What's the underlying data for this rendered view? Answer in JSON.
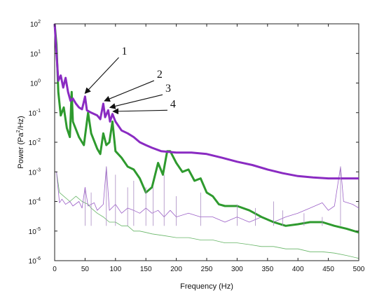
{
  "chart_data": {
    "type": "line",
    "title": "",
    "xlabel": "Frequency (Hz)",
    "ylabel": {
      "base": "Power (Pa",
      "sup": "2",
      "tail": "/Hz)"
    },
    "xlim": [
      0,
      500
    ],
    "ylim_exp": [
      -6,
      2
    ],
    "yscale": "log",
    "grid": false,
    "legend": "none",
    "x_ticks": [
      "0",
      "50",
      "100",
      "150",
      "200",
      "250",
      "300",
      "350",
      "400",
      "450",
      "500"
    ],
    "y_ticks": [
      {
        "base": "10",
        "exp": "-6"
      },
      {
        "base": "10",
        "exp": "-5"
      },
      {
        "base": "10",
        "exp": "-4"
      },
      {
        "base": "10",
        "exp": "-3"
      },
      {
        "base": "10",
        "exp": "-2"
      },
      {
        "base": "10",
        "exp": "-1"
      },
      {
        "base": "10",
        "exp": "0"
      },
      {
        "base": "10",
        "exp": "1"
      },
      {
        "base": "10",
        "exp": "2"
      }
    ],
    "series": [
      {
        "color": "#8a2bc2",
        "width": 3,
        "points": [
          [
            0,
            100
          ],
          [
            3,
            10
          ],
          [
            6,
            1.2
          ],
          [
            10,
            1.8
          ],
          [
            14,
            0.7
          ],
          [
            18,
            1.5
          ],
          [
            22,
            0.5
          ],
          [
            26,
            0.25
          ],
          [
            30,
            0.3
          ],
          [
            35,
            0.2
          ],
          [
            40,
            0.15
          ],
          [
            45,
            0.13
          ],
          [
            50,
            0.35
          ],
          [
            53,
            0.12
          ],
          [
            60,
            0.1
          ],
          [
            70,
            0.08
          ],
          [
            75,
            0.06
          ],
          [
            80,
            0.2
          ],
          [
            83,
            0.07
          ],
          [
            88,
            0.12
          ],
          [
            91,
            0.05
          ],
          [
            95,
            0.09
          ],
          [
            100,
            0.05
          ],
          [
            110,
            0.025
          ],
          [
            120,
            0.02
          ],
          [
            130,
            0.015
          ],
          [
            140,
            0.01
          ],
          [
            150,
            0.008
          ],
          [
            160,
            0.0065
          ],
          [
            175,
            0.005
          ],
          [
            200,
            0.0045
          ],
          [
            225,
            0.0045
          ],
          [
            250,
            0.004
          ],
          [
            275,
            0.003
          ],
          [
            300,
            0.0022
          ],
          [
            325,
            0.0017
          ],
          [
            350,
            0.0012
          ],
          [
            375,
            0.0009
          ],
          [
            400,
            0.00072
          ],
          [
            425,
            0.00065
          ],
          [
            450,
            0.0006
          ],
          [
            475,
            0.0006
          ],
          [
            500,
            0.0006
          ]
        ]
      },
      {
        "color": "#2e9a2e",
        "width": 3,
        "points": [
          [
            0,
            100
          ],
          [
            3,
            20
          ],
          [
            6,
            0.5
          ],
          [
            10,
            0.08
          ],
          [
            15,
            0.15
          ],
          [
            20,
            0.03
          ],
          [
            25,
            0.015
          ],
          [
            28,
            0.5
          ],
          [
            30,
            0.05
          ],
          [
            40,
            0.015
          ],
          [
            48,
            0.008
          ],
          [
            55,
            0.1
          ],
          [
            60,
            0.02
          ],
          [
            70,
            0.006
          ],
          [
            75,
            0.004
          ],
          [
            80,
            0.02
          ],
          [
            85,
            0.008
          ],
          [
            90,
            0.01
          ],
          [
            95,
            0.05
          ],
          [
            100,
            0.005
          ],
          [
            110,
            0.003
          ],
          [
            120,
            0.0015
          ],
          [
            130,
            0.0012
          ],
          [
            140,
            0.0006
          ],
          [
            150,
            0.0002
          ],
          [
            160,
            0.0003
          ],
          [
            170,
            0.002
          ],
          [
            178,
            0.0008
          ],
          [
            185,
            0.005
          ],
          [
            190,
            0.005
          ],
          [
            200,
            0.002
          ],
          [
            210,
            0.001
          ],
          [
            220,
            0.0012
          ],
          [
            230,
            0.0005
          ],
          [
            240,
            0.0006
          ],
          [
            250,
            0.0002
          ],
          [
            260,
            0.00015
          ],
          [
            270,
            8e-05
          ],
          [
            280,
            7e-05
          ],
          [
            300,
            7e-05
          ],
          [
            320,
            5e-05
          ],
          [
            340,
            3e-05
          ],
          [
            360,
            2e-05
          ],
          [
            380,
            1.5e-05
          ],
          [
            400,
            1.7e-05
          ],
          [
            420,
            2e-05
          ],
          [
            440,
            2e-05
          ],
          [
            460,
            1.5e-05
          ],
          [
            480,
            1.2e-05
          ],
          [
            500,
            9e-06
          ]
        ]
      },
      {
        "color": "#9b5fc7",
        "width": 0.8,
        "points": [
          [
            3,
            0.001
          ],
          [
            8,
            9e-05
          ],
          [
            12,
            0.00012
          ],
          [
            18,
            8e-05
          ],
          [
            25,
            0.0001
          ],
          [
            30,
            7e-05
          ],
          [
            40,
            0.0001
          ],
          [
            45,
            6e-05
          ],
          [
            50,
            0.0003
          ],
          [
            55,
            7e-05
          ],
          [
            65,
            9e-05
          ],
          [
            70,
            5e-05
          ],
          [
            80,
            8e-05
          ],
          [
            85,
            0.0015
          ],
          [
            90,
            5e-05
          ],
          [
            100,
            8e-05
          ],
          [
            110,
            4e-05
          ],
          [
            120,
            6e-05
          ],
          [
            130,
            5e-05
          ],
          [
            140,
            4e-05
          ],
          [
            150,
            6e-05
          ],
          [
            160,
            4e-05
          ],
          [
            170,
            5e-05
          ],
          [
            180,
            3e-05
          ],
          [
            190,
            5e-05
          ],
          [
            200,
            3e-05
          ],
          [
            220,
            4e-05
          ],
          [
            240,
            3e-05
          ],
          [
            260,
            3e-05
          ],
          [
            280,
            2e-05
          ],
          [
            300,
            3e-05
          ],
          [
            320,
            2e-05
          ],
          [
            340,
            3e-05
          ],
          [
            360,
            2e-05
          ],
          [
            380,
            3e-05
          ],
          [
            400,
            4e-05
          ],
          [
            420,
            6e-05
          ],
          [
            440,
            9e-05
          ],
          [
            450,
            5e-05
          ],
          [
            460,
            7e-05
          ],
          [
            470,
            0.0015
          ],
          [
            475,
            0.0001
          ],
          [
            490,
            8e-05
          ],
          [
            500,
            6e-05
          ]
        ]
      },
      {
        "color": "#66b566",
        "width": 0.8,
        "points": [
          [
            3,
            0.001
          ],
          [
            8,
            0.0002
          ],
          [
            15,
            0.00015
          ],
          [
            25,
            0.0001
          ],
          [
            35,
            0.00015
          ],
          [
            45,
            0.0001
          ],
          [
            55,
            8e-05
          ],
          [
            60,
            6e-05
          ],
          [
            70,
            4e-05
          ],
          [
            80,
            3e-05
          ],
          [
            90,
            2e-05
          ],
          [
            100,
            2e-05
          ],
          [
            110,
            1.5e-05
          ],
          [
            120,
            1.5e-05
          ],
          [
            130,
            1e-05
          ],
          [
            140,
            1e-05
          ],
          [
            150,
            9e-06
          ],
          [
            160,
            8e-06
          ],
          [
            180,
            7e-06
          ],
          [
            200,
            6e-06
          ],
          [
            220,
            6e-06
          ],
          [
            240,
            5e-06
          ],
          [
            260,
            5e-06
          ],
          [
            280,
            4e-06
          ],
          [
            300,
            4e-06
          ],
          [
            320,
            3.5e-06
          ],
          [
            340,
            3e-06
          ],
          [
            360,
            3e-06
          ],
          [
            380,
            2.5e-06
          ],
          [
            400,
            2.5e-06
          ],
          [
            420,
            2e-06
          ],
          [
            440,
            2e-06
          ],
          [
            460,
            1.8e-06
          ],
          [
            480,
            1.5e-06
          ],
          [
            500,
            1.2e-06
          ]
        ]
      }
    ],
    "spikes": [
      {
        "x": 50,
        "y": 0.00025
      },
      {
        "x": 60,
        "y": 0.0002
      },
      {
        "x": 85,
        "y": 0.0015
      },
      {
        "x": 100,
        "y": 0.0008
      },
      {
        "x": 120,
        "y": 0.0003
      },
      {
        "x": 130,
        "y": 0.0005
      },
      {
        "x": 150,
        "y": 0.0003
      },
      {
        "x": 162,
        "y": 0.0003
      },
      {
        "x": 180,
        "y": 0.0008
      },
      {
        "x": 200,
        "y": 0.00015
      },
      {
        "x": 240,
        "y": 0.0002
      },
      {
        "x": 300,
        "y": 8e-05
      },
      {
        "x": 330,
        "y": 6e-05
      },
      {
        "x": 360,
        "y": 0.0001
      },
      {
        "x": 375,
        "y": 5e-05
      },
      {
        "x": 410,
        "y": 4e-05
      },
      {
        "x": 440,
        "y": 3e-05
      },
      {
        "x": 470,
        "y": 0.0015
      }
    ],
    "annotations": [
      {
        "label": "1",
        "tx": 110,
        "ty": 9.0,
        "ax": 50,
        "ay": 0.45
      },
      {
        "label": "2",
        "tx": 168,
        "ty": 1.5,
        "ax": 82,
        "ay": 0.25
      },
      {
        "label": "3",
        "tx": 182,
        "ty": 0.5,
        "ax": 91,
        "ay": 0.15
      },
      {
        "label": "4",
        "tx": 190,
        "ty": 0.15,
        "ax": 96,
        "ay": 0.11
      }
    ]
  }
}
